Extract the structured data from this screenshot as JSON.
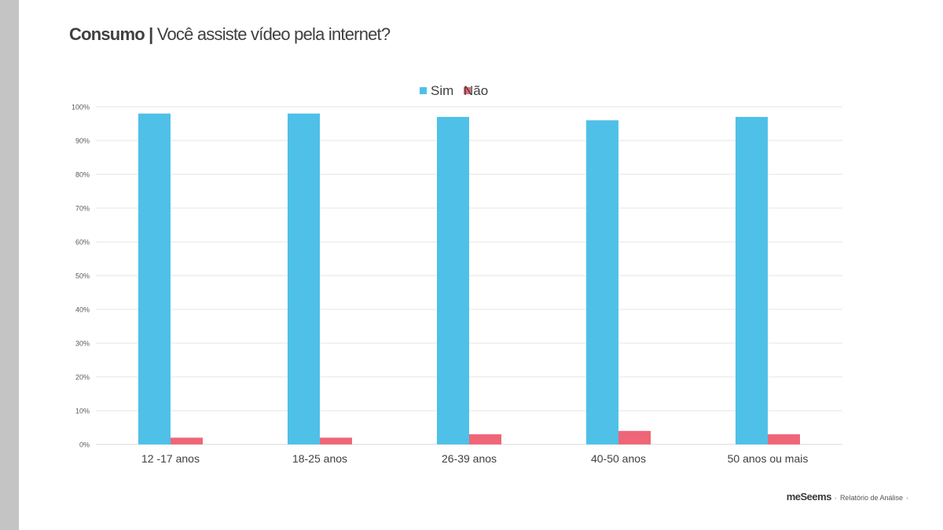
{
  "slide": {
    "title_bold": "Consumo |",
    "title_rest": " Você assiste vídeo pela internet?"
  },
  "footer": {
    "brand": "meSeems",
    "separator": "·",
    "report": "Relatório de Análise",
    "separator_end": "·"
  },
  "colors": {
    "sim": "#4fc0e8",
    "nao": "#ee6677",
    "grid": "#e6e6e6",
    "axis": "#d9d9d9",
    "side_strip": "#c4c4c4"
  },
  "chart_data": {
    "type": "bar",
    "categories": [
      "12 -17 anos",
      "18-25 anos",
      "26-39 anos",
      "40-50 anos",
      "50 anos ou mais"
    ],
    "series": [
      {
        "name": "Sim",
        "values": [
          98,
          98,
          97,
          96,
          97
        ]
      },
      {
        "name": "Não",
        "values": [
          2,
          2,
          3,
          4,
          3
        ]
      }
    ],
    "ylim": [
      0,
      100
    ],
    "yticks": [
      "0%",
      "10%",
      "20%",
      "30%",
      "40%",
      "50%",
      "60%",
      "70%",
      "80%",
      "90%",
      "100%"
    ],
    "legend_position": "top-center",
    "grid": true
  }
}
